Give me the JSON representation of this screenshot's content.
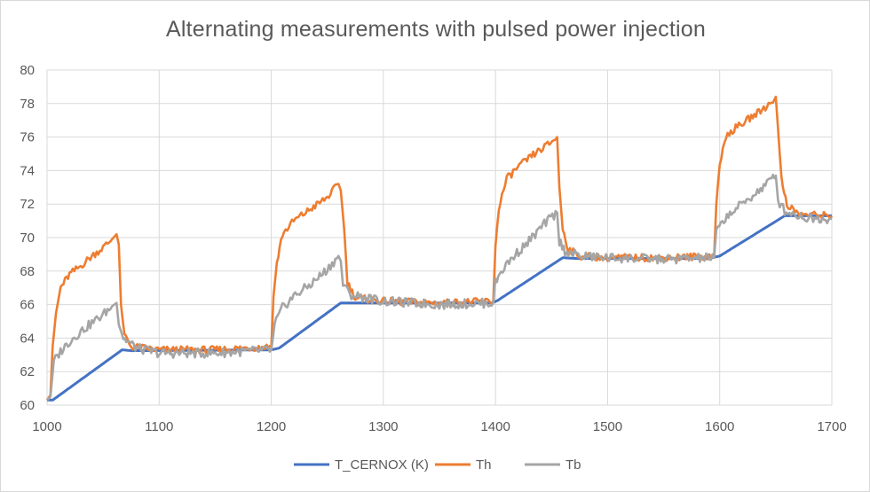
{
  "chart_data": {
    "type": "line",
    "title": "Alternating measurements with pulsed power injection",
    "xlabel": "",
    "ylabel": "",
    "xlim": [
      1000,
      1700
    ],
    "ylim": [
      60,
      80
    ],
    "x_ticks": [
      1000,
      1100,
      1200,
      1300,
      1400,
      1500,
      1600,
      1700
    ],
    "y_ticks": [
      60,
      62,
      64,
      66,
      68,
      70,
      72,
      74,
      76,
      78,
      80
    ],
    "grid": true,
    "legend_position": "bottom",
    "series": [
      {
        "name": "T_CERNOX (K)",
        "color": "#4472c4",
        "points": [
          [
            1000,
            60.3
          ],
          [
            1005,
            60.3
          ],
          [
            1067,
            63.3
          ],
          [
            1075,
            63.25
          ],
          [
            1200,
            63.3
          ],
          [
            1207,
            63.4
          ],
          [
            1262,
            66.1
          ],
          [
            1275,
            66.1
          ],
          [
            1397,
            66.1
          ],
          [
            1402,
            66.25
          ],
          [
            1460,
            68.8
          ],
          [
            1472,
            68.75
          ],
          [
            1590,
            68.75
          ],
          [
            1600,
            68.9
          ],
          [
            1658,
            71.3
          ],
          [
            1700,
            71.3
          ]
        ]
      },
      {
        "name": "Th",
        "color": "#ed7d31",
        "points": [
          [
            1000,
            60.3
          ],
          [
            1003,
            60.6
          ],
          [
            1005,
            63.5
          ],
          [
            1008,
            65.5
          ],
          [
            1012,
            67
          ],
          [
            1020,
            67.8
          ],
          [
            1030,
            68.3
          ],
          [
            1040,
            68.9
          ],
          [
            1050,
            69.4
          ],
          [
            1058,
            69.9
          ],
          [
            1062,
            70.2
          ],
          [
            1064,
            69.6
          ],
          [
            1066,
            66
          ],
          [
            1069,
            64.2
          ],
          [
            1075,
            63.5
          ],
          [
            1100,
            63.3
          ],
          [
            1150,
            63.3
          ],
          [
            1200,
            63.5
          ],
          [
            1202,
            66.5
          ],
          [
            1205,
            68.5
          ],
          [
            1210,
            70.2
          ],
          [
            1220,
            71
          ],
          [
            1235,
            71.7
          ],
          [
            1250,
            72.4
          ],
          [
            1260,
            73.2
          ],
          [
            1262,
            72.8
          ],
          [
            1265,
            70.5
          ],
          [
            1268,
            67.3
          ],
          [
            1275,
            66.4
          ],
          [
            1300,
            66.2
          ],
          [
            1350,
            66.1
          ],
          [
            1398,
            66.2
          ],
          [
            1400,
            69.5
          ],
          [
            1403,
            71.8
          ],
          [
            1410,
            73.5
          ],
          [
            1420,
            74.2
          ],
          [
            1435,
            75
          ],
          [
            1448,
            75.6
          ],
          [
            1455,
            76
          ],
          [
            1457,
            73
          ],
          [
            1460,
            70.5
          ],
          [
            1465,
            69.3
          ],
          [
            1475,
            68.9
          ],
          [
            1500,
            68.8
          ],
          [
            1550,
            68.8
          ],
          [
            1595,
            68.9
          ],
          [
            1597,
            72
          ],
          [
            1600,
            74.5
          ],
          [
            1607,
            76.2
          ],
          [
            1620,
            76.8
          ],
          [
            1635,
            77.5
          ],
          [
            1645,
            78
          ],
          [
            1650,
            78.4
          ],
          [
            1652,
            76.5
          ],
          [
            1655,
            73.5
          ],
          [
            1660,
            72
          ],
          [
            1670,
            71.4
          ],
          [
            1700,
            71.3
          ]
        ]
      },
      {
        "name": "Tb",
        "color": "#a5a5a5",
        "points": [
          [
            1000,
            60.3
          ],
          [
            1003,
            60.5
          ],
          [
            1006,
            62.6
          ],
          [
            1012,
            63.2
          ],
          [
            1020,
            63.8
          ],
          [
            1030,
            64.4
          ],
          [
            1040,
            64.9
          ],
          [
            1050,
            65.4
          ],
          [
            1058,
            65.9
          ],
          [
            1062,
            66.1
          ],
          [
            1064,
            64.8
          ],
          [
            1068,
            64
          ],
          [
            1080,
            63.4
          ],
          [
            1100,
            63.1
          ],
          [
            1150,
            63.1
          ],
          [
            1200,
            63.3
          ],
          [
            1203,
            64.8
          ],
          [
            1210,
            65.8
          ],
          [
            1220,
            66.5
          ],
          [
            1235,
            67.2
          ],
          [
            1250,
            68.1
          ],
          [
            1260,
            68.9
          ],
          [
            1262,
            68.6
          ],
          [
            1264,
            67.2
          ],
          [
            1270,
            66.6
          ],
          [
            1300,
            66.2
          ],
          [
            1350,
            66
          ],
          [
            1398,
            66.1
          ],
          [
            1400,
            67.3
          ],
          [
            1405,
            68
          ],
          [
            1415,
            68.8
          ],
          [
            1430,
            69.8
          ],
          [
            1445,
            70.9
          ],
          [
            1455,
            71.5
          ],
          [
            1457,
            69.8
          ],
          [
            1462,
            69.2
          ],
          [
            1475,
            68.9
          ],
          [
            1500,
            68.8
          ],
          [
            1550,
            68.7
          ],
          [
            1595,
            68.8
          ],
          [
            1597,
            70.3
          ],
          [
            1605,
            71.2
          ],
          [
            1620,
            72
          ],
          [
            1635,
            72.8
          ],
          [
            1645,
            73.4
          ],
          [
            1650,
            73.7
          ],
          [
            1652,
            72.2
          ],
          [
            1658,
            71.6
          ],
          [
            1675,
            71.2
          ],
          [
            1700,
            71.1
          ]
        ]
      }
    ]
  }
}
